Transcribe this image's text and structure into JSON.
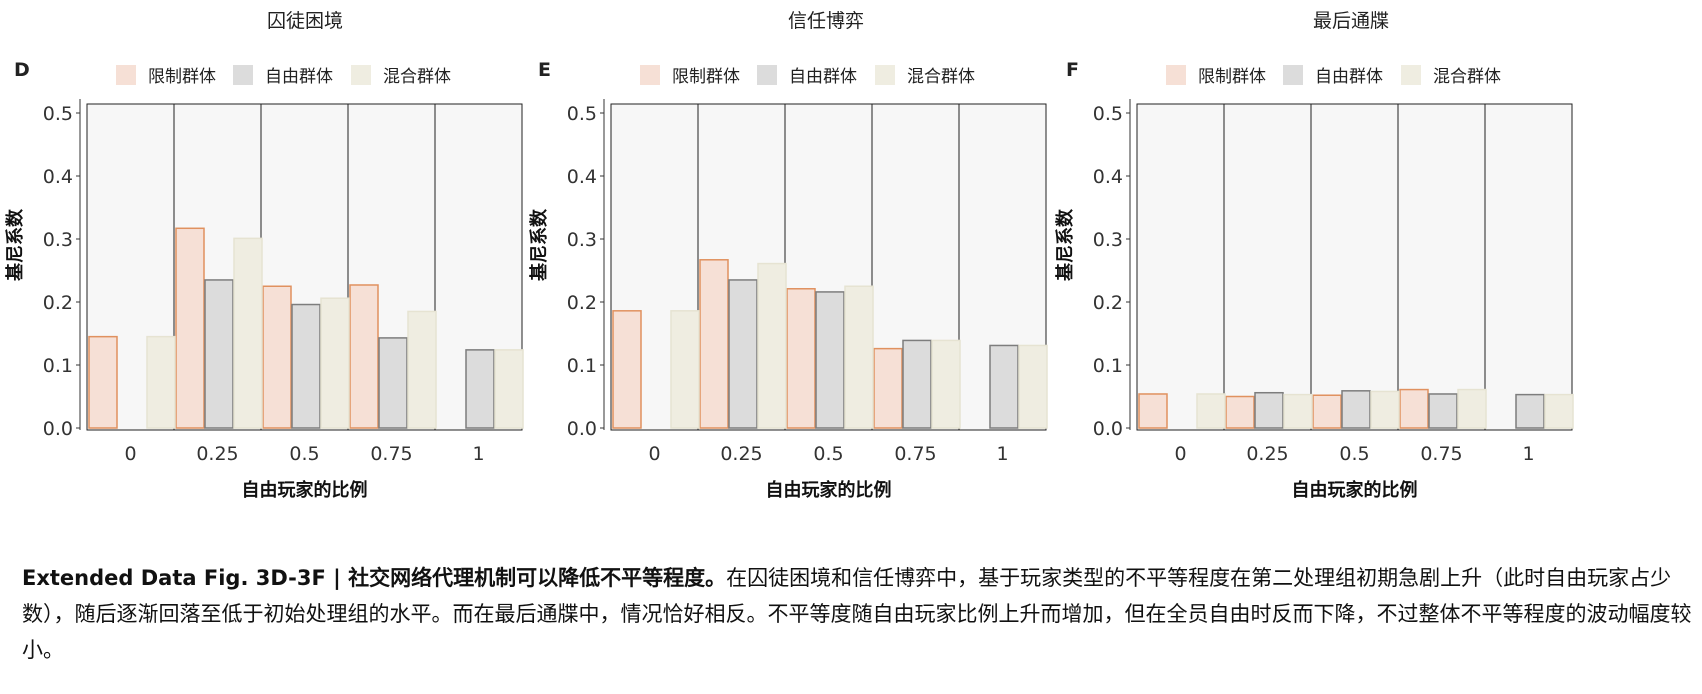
{
  "chart_data": [
    {
      "type": "bar",
      "panel_letter": "D",
      "title": "囚徒困境",
      "categories": [
        "0",
        "0.25",
        "0.5",
        "0.75",
        "1"
      ],
      "series": [
        {
          "name": "限制群体",
          "values": [
            0.145,
            0.317,
            0.225,
            0.227,
            null
          ]
        },
        {
          "name": "自由群体",
          "values": [
            null,
            0.235,
            0.196,
            0.143,
            0.124
          ]
        },
        {
          "name": "混合群体",
          "values": [
            0.145,
            0.301,
            0.206,
            0.185,
            0.124
          ]
        }
      ],
      "xlabel": "自由玩家的比例",
      "ylabel": "基尼系数",
      "ylim": [
        0,
        0.5
      ],
      "yticks": [
        "0.0",
        "0.1",
        "0.2",
        "0.3",
        "0.4",
        "0.5"
      ],
      "legend": "top"
    },
    {
      "type": "bar",
      "panel_letter": "E",
      "title": "信任博弈",
      "categories": [
        "0",
        "0.25",
        "0.5",
        "0.75",
        "1"
      ],
      "series": [
        {
          "name": "限制群体",
          "values": [
            0.186,
            0.267,
            0.221,
            0.126,
            null
          ]
        },
        {
          "name": "自由群体",
          "values": [
            null,
            0.235,
            0.216,
            0.139,
            0.131
          ]
        },
        {
          "name": "混合群体",
          "values": [
            0.186,
            0.261,
            0.225,
            0.139,
            0.131
          ]
        }
      ],
      "xlabel": "自由玩家的比例",
      "ylabel": "基尼系数",
      "ylim": [
        0,
        0.5
      ],
      "yticks": [
        "0.0",
        "0.1",
        "0.2",
        "0.3",
        "0.4",
        "0.5"
      ],
      "legend": "top"
    },
    {
      "type": "bar",
      "panel_letter": "F",
      "title": "最后通牒",
      "categories": [
        "0",
        "0.25",
        "0.5",
        "0.75",
        "1"
      ],
      "series": [
        {
          "name": "限制群体",
          "values": [
            0.054,
            0.05,
            0.052,
            0.061,
            null
          ]
        },
        {
          "name": "自由群体",
          "values": [
            null,
            0.056,
            0.059,
            0.054,
            0.053
          ]
        },
        {
          "name": "混合群体",
          "values": [
            0.054,
            0.053,
            0.058,
            0.061,
            0.053
          ]
        }
      ],
      "xlabel": "自由玩家的比例",
      "ylabel": "基尼系数",
      "ylim": [
        0,
        0.5
      ],
      "yticks": [
        "0.0",
        "0.1",
        "0.2",
        "0.3",
        "0.4",
        "0.5"
      ],
      "legend": "top"
    }
  ],
  "colors": {
    "限制群体": {
      "fill": "#f6e0d6",
      "stroke": "#e0915f"
    },
    "自由群体": {
      "fill": "#dcdcdc",
      "stroke": "#7d7d7d"
    },
    "混合群体": {
      "fill": "#efede1",
      "stroke": "#e6e3d2"
    },
    "panel_bg": "#f7f7f7"
  },
  "caption": {
    "head": "Extended Data Fig. 3D-3F | 社交网络代理机制可以降低不平等程度。",
    "body": "在囚徒困境和信任博弈中，基于玩家类型的不平等程度在第二处理组初期急剧上升（此时自由玩家占少数），随后逐渐回落至低于初始处理组的水平。而在最后通牒中，情况恰好相反。不平等度随自由玩家比例上升而增加，但在全员自由时反而下降，不过整体不平等程度的波动幅度较小。"
  }
}
